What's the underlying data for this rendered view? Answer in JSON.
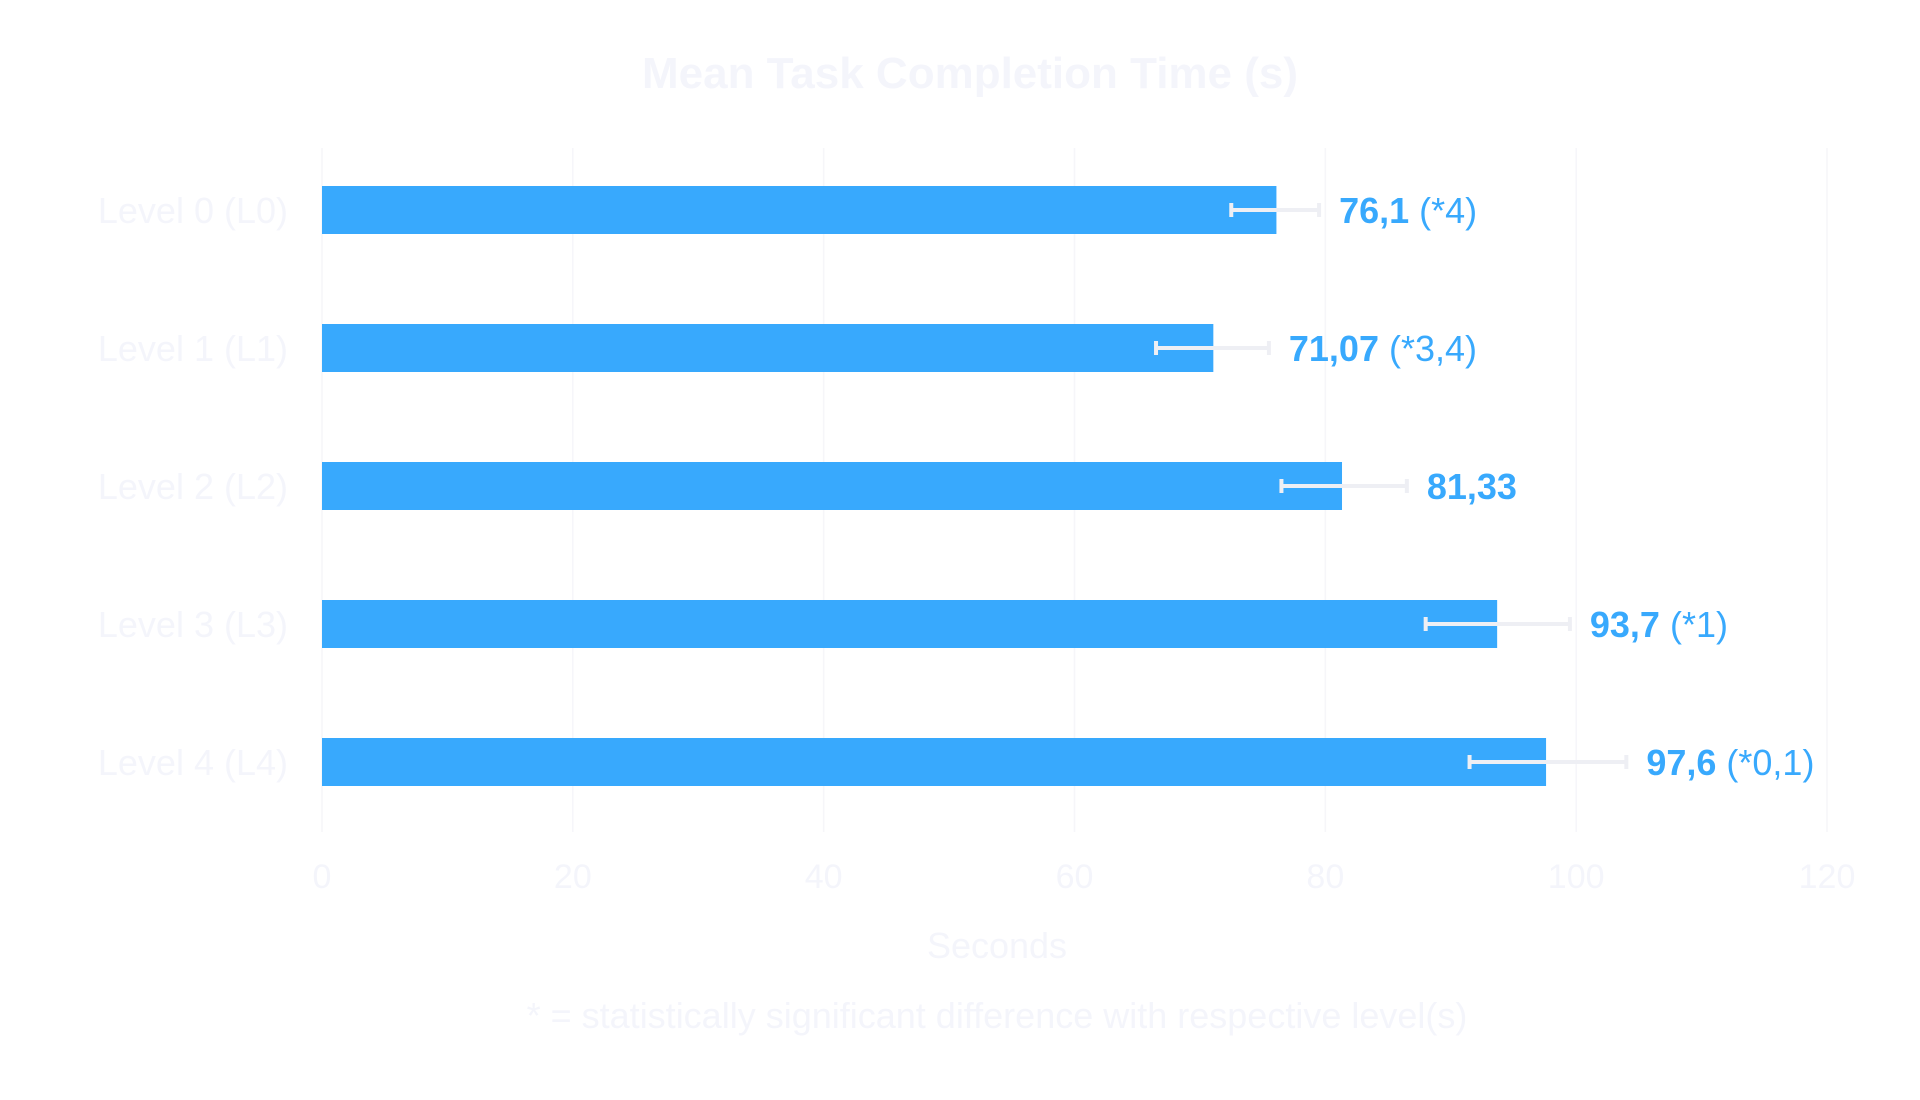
{
  "colors": {
    "bar": "#38a9fd",
    "value_text": "#38a9fd",
    "faint_text": "#f4f5fb",
    "grid": "#f6f6f9",
    "error_bar": "#eeeff4"
  },
  "chart_data": {
    "type": "bar",
    "orientation": "horizontal",
    "title": "Mean Task Completion Time (s)",
    "xlabel": "Seconds",
    "ylabel": "",
    "xlim": [
      0,
      120
    ],
    "xticks": [
      0,
      20,
      40,
      60,
      80,
      100,
      120
    ],
    "grid": true,
    "categories": [
      "Level 0 (L0)",
      "Level 1 (L1)",
      "Level 2 (L2)",
      "Level 3 (L3)",
      "Level 4 (L4)"
    ],
    "values": [
      76.1,
      71.07,
      81.33,
      93.7,
      97.6
    ],
    "error_low": [
      72.5,
      66.5,
      76.5,
      88.0,
      91.5
    ],
    "error_high": [
      79.5,
      75.5,
      86.5,
      99.5,
      104.0
    ],
    "value_labels": [
      "76,1",
      "71,07",
      "81,33",
      "93,7",
      "97,6"
    ],
    "significance": [
      "(*4)",
      "(*3,4)",
      "",
      "(*1)",
      "(*0,1)"
    ],
    "footnote": "* = statistically significant difference with respective level(s)"
  }
}
